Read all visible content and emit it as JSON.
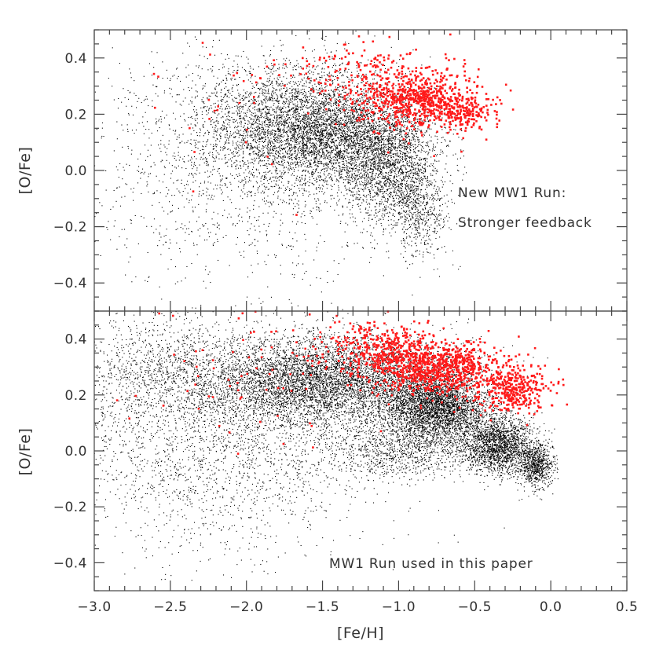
{
  "chart_data": [
    {
      "type": "scatter",
      "panel": "top",
      "xlim": [
        -3.0,
        0.5
      ],
      "ylim": [
        -0.5,
        0.5
      ],
      "ylabel": "[O/Fe]",
      "xlabel": "",
      "x_ticks": [
        -3.0,
        -2.5,
        -2.0,
        -1.5,
        -1.0,
        -0.5,
        0.0,
        0.5
      ],
      "y_ticks": [
        -0.4,
        -0.2,
        0.0,
        0.2,
        0.4
      ],
      "y_tick_labels": [
        "−0.4",
        "−0.2",
        "0.0",
        "0.2",
        "0.4"
      ],
      "grid": false,
      "annotation": [
        "New MW1 Run:",
        "Stronger feedback"
      ],
      "series": [
        {
          "color": "#000000",
          "clusters": [
            {
              "fe_h": -1.45,
              "o_fe": 0.12,
              "sd_fe_h": 0.33,
              "sd_o_fe": 0.09,
              "count": 4200
            },
            {
              "fe_h": -1.75,
              "o_fe": 0.22,
              "sd_fe_h": 0.35,
              "sd_o_fe": 0.1,
              "count": 1500
            },
            {
              "fe_h": -1.05,
              "o_fe": 0.0,
              "sd_fe_h": 0.15,
              "sd_o_fe": 0.1,
              "count": 1600
            },
            {
              "fe_h": -0.85,
              "o_fe": -0.15,
              "sd_fe_h": 0.1,
              "sd_o_fe": 0.08,
              "count": 500
            },
            {
              "fe_h": -2.0,
              "o_fe": 0.0,
              "sd_fe_h": 0.55,
              "sd_o_fe": 0.2,
              "count": 1500
            }
          ]
        },
        {
          "color": "#ff1a1a",
          "clusters": [
            {
              "fe_h": -0.85,
              "o_fe": 0.25,
              "sd_fe_h": 0.2,
              "sd_o_fe": 0.05,
              "count": 700
            },
            {
              "fe_h": -1.2,
              "o_fe": 0.35,
              "sd_fe_h": 0.25,
              "sd_o_fe": 0.06,
              "count": 170
            },
            {
              "fe_h": -0.55,
              "o_fe": 0.2,
              "sd_fe_h": 0.08,
              "sd_o_fe": 0.03,
              "count": 130
            },
            {
              "fe_h": -1.9,
              "o_fe": 0.25,
              "sd_fe_h": 0.5,
              "sd_o_fe": 0.12,
              "count": 45
            }
          ]
        }
      ]
    },
    {
      "type": "scatter",
      "panel": "bottom",
      "xlim": [
        -3.0,
        0.5
      ],
      "ylim": [
        -0.5,
        0.5
      ],
      "xlabel": "[Fe/H]",
      "ylabel": "[O/Fe]",
      "x_ticks": [
        -3.0,
        -2.5,
        -2.0,
        -1.5,
        -1.0,
        -0.5,
        0.0,
        0.5
      ],
      "x_tick_labels": [
        "−3.0",
        "−2.5",
        "−2.0",
        "−1.5",
        "−1.0",
        "−0.5",
        "0.0",
        "0.5"
      ],
      "y_ticks": [
        -0.4,
        -0.2,
        0.0,
        0.2,
        0.4
      ],
      "y_tick_labels": [
        "−0.4",
        "−0.2",
        "0.0",
        "0.2",
        "0.4"
      ],
      "grid": false,
      "annotation": [
        "MW1 Run used in this paper"
      ],
      "series": [
        {
          "color": "#000000",
          "clusters": [
            {
              "fe_h": -1.5,
              "o_fe": 0.25,
              "sd_fe_h": 0.45,
              "sd_o_fe": 0.08,
              "count": 6000
            },
            {
              "fe_h": -0.75,
              "o_fe": 0.15,
              "sd_fe_h": 0.18,
              "sd_o_fe": 0.06,
              "count": 3500
            },
            {
              "fe_h": -0.35,
              "o_fe": 0.02,
              "sd_fe_h": 0.12,
              "sd_o_fe": 0.05,
              "count": 2000
            },
            {
              "fe_h": -0.1,
              "o_fe": -0.05,
              "sd_fe_h": 0.06,
              "sd_o_fe": 0.04,
              "count": 800
            },
            {
              "fe_h": -1.0,
              "o_fe": 0.0,
              "sd_fe_h": 0.25,
              "sd_o_fe": 0.05,
              "count": 900
            },
            {
              "fe_h": -2.2,
              "o_fe": 0.05,
              "sd_fe_h": 0.55,
              "sd_o_fe": 0.2,
              "count": 2600
            },
            {
              "fe_h": -2.6,
              "o_fe": 0.3,
              "sd_fe_h": 0.25,
              "sd_o_fe": 0.1,
              "count": 700
            }
          ]
        },
        {
          "color": "#ff1a1a",
          "clusters": [
            {
              "fe_h": -0.75,
              "o_fe": 0.3,
              "sd_fe_h": 0.2,
              "sd_o_fe": 0.05,
              "count": 900
            },
            {
              "fe_h": -0.25,
              "o_fe": 0.22,
              "sd_fe_h": 0.12,
              "sd_o_fe": 0.04,
              "count": 350
            },
            {
              "fe_h": -1.15,
              "o_fe": 0.37,
              "sd_fe_h": 0.18,
              "sd_o_fe": 0.05,
              "count": 300
            },
            {
              "fe_h": -1.8,
              "o_fe": 0.3,
              "sd_fe_h": 0.5,
              "sd_o_fe": 0.12,
              "count": 90
            }
          ]
        }
      ]
    }
  ]
}
